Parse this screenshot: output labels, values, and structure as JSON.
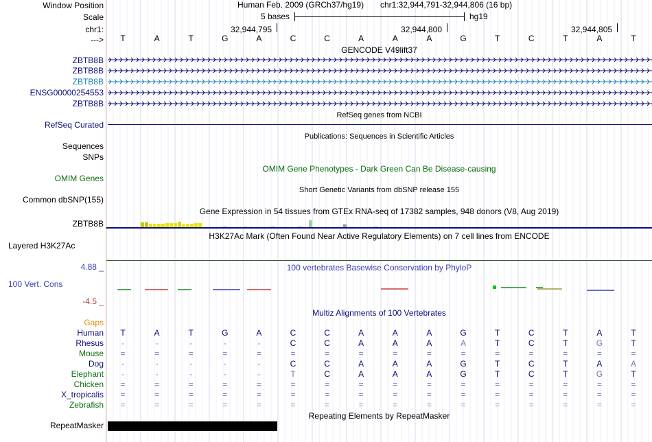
{
  "header": {
    "window_position_label": "Window Position",
    "scale_label": "Scale",
    "chrom_label": "chr1:",
    "arrow_label": "--->",
    "assembly_text": "Human Feb. 2009 (GRCh37/hg19)",
    "position_text": "chr1:32,944,791-32,944,806 (16 bp)",
    "scale_bar_label": "5 bases",
    "scale_db_label": "hg19",
    "coord_ticks": [
      "32,944,795",
      "32,944,800",
      "32,944,805"
    ]
  },
  "sequence": [
    "T",
    "A",
    "T",
    "G",
    "A",
    "C",
    "C",
    "A",
    "A",
    "A",
    "G",
    "T",
    "C",
    "T",
    "A",
    "T"
  ],
  "tracks": {
    "gencode": {
      "title": "GENCODE V49lift37",
      "rows": [
        {
          "label": "ZBTB8B",
          "color": "#0c0c78"
        },
        {
          "label": "ZBTB8B",
          "color": "#0c0c78"
        },
        {
          "label": "ZBTB8B",
          "color": "#1c82b4"
        },
        {
          "label": "ENSG00000254553",
          "color": "#0c0c78"
        },
        {
          "label": "ZBTB8B",
          "color": "#0c0c78"
        }
      ]
    },
    "refseq": {
      "title": "RefSeq genes from NCBI",
      "label": "RefSeq Curated"
    },
    "publications": {
      "title": "Publications: Sequences in Scientific Articles",
      "label": "Sequences"
    },
    "snps": {
      "label": "SNPs"
    },
    "omim": {
      "title": "OMIM Gene Phenotypes - Dark Green Can Be Disease-causing",
      "label": "OMIM Genes"
    },
    "dbsnp": {
      "title": "Short Genetic Variants from dbSNP release 155",
      "label": "Common dbSNP(155)"
    },
    "gtex": {
      "title": "Gene Expression in 54 tissues from GTEx RNA-seq of 17382 samples, 948 donors (V8, Aug 2019)",
      "label": "ZBTB8B"
    },
    "h3k27ac": {
      "title": "H3K27Ac Mark (Often Found Near Active Regulatory Elements) on 7 cell lines from ENCODE",
      "label": "Layered H3K27Ac"
    },
    "cons": {
      "title": "100 vertebrates Basewise Conservation by PhyloP",
      "label": "100 Vert. Cons",
      "max_label": "4.88 _",
      "min_label": "-4.5 _"
    },
    "multiz": {
      "title": "Multiz Alignments of 100 Vertebrates",
      "gaps_label": "Gaps",
      "species": [
        {
          "name": "Human",
          "bases": [
            "T",
            "A",
            "T",
            "G",
            "A",
            "C",
            "C",
            "A",
            "A",
            "A",
            "G",
            "T",
            "C",
            "T",
            "A",
            "T"
          ],
          "color": "#0c0c78"
        },
        {
          "name": "Rhesus",
          "bases": [
            "-",
            "-",
            "-",
            "-",
            "-",
            "C",
            "C",
            "A",
            "A",
            "A",
            "A",
            "T",
            "C",
            "T",
            "G",
            "T"
          ],
          "color": "#0c0c78"
        },
        {
          "name": "Mouse",
          "bases": [
            "=",
            "=",
            "=",
            "=",
            "=",
            "=",
            "=",
            "=",
            "=",
            "=",
            "=",
            "=",
            "=",
            "=",
            "=",
            "="
          ],
          "color": "#0c6e0c"
        },
        {
          "name": "Dog",
          "bases": [
            "-",
            "-",
            "-",
            "-",
            "-",
            "C",
            "C",
            "A",
            "A",
            "A",
            "G",
            "T",
            "C",
            "T",
            "A",
            "A"
          ],
          "color": "#0c0c78"
        },
        {
          "name": "Elephant",
          "bases": [
            "-",
            "-",
            "-",
            "-",
            "-",
            "T",
            "C",
            "A",
            "A",
            "A",
            "G",
            "T",
            "C",
            "T",
            "G",
            "T"
          ],
          "color": "#0c6e0c"
        },
        {
          "name": "Chicken",
          "bases": [
            "=",
            "=",
            "=",
            "=",
            "=",
            "=",
            "=",
            "=",
            "=",
            "=",
            "=",
            "=",
            "=",
            "=",
            "=",
            "="
          ],
          "color": "#0c6e0c"
        },
        {
          "name": "X_tropicalis",
          "bases": [
            "=",
            "=",
            "=",
            "=",
            "=",
            "=",
            "=",
            "=",
            "=",
            "=",
            "=",
            "=",
            "=",
            "=",
            "=",
            "="
          ],
          "color": "#0c0c78"
        },
        {
          "name": "Zebrafish",
          "bases": [
            "=",
            "=",
            "=",
            "=",
            "=",
            "=",
            "=",
            "=",
            "=",
            "=",
            "=",
            "=",
            "=",
            "=",
            "=",
            "="
          ],
          "color": "#0c6e0c"
        }
      ]
    },
    "repeatmasker": {
      "title": "Repeating Elements by RepeatMasker",
      "label": "RepeatMasker"
    }
  }
}
